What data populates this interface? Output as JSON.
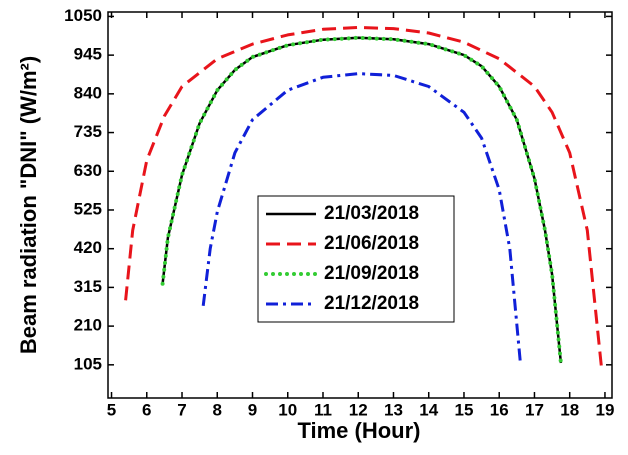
{
  "chart_data": {
    "type": "line",
    "x_label": "Time (Hour)",
    "y_label": "Beam radiation \"DNI\" (W/m²)",
    "xlim": [
      4.9,
      19.2
    ],
    "ylim": [
      15,
      1062
    ],
    "xticks": [
      5,
      6,
      7,
      8,
      9,
      10,
      11,
      12,
      13,
      14,
      15,
      16,
      17,
      18,
      19
    ],
    "yticks": [
      105,
      210,
      315,
      420,
      525,
      630,
      735,
      840,
      945,
      1050
    ],
    "grid": false,
    "legend": "center",
    "series": [
      {
        "name": "21/03/2018",
        "color": "#000000",
        "line_style": "solid",
        "x": [
          6.45,
          6.6,
          7,
          7.5,
          8,
          8.5,
          9,
          10,
          11,
          12,
          13,
          14,
          15,
          15.5,
          16,
          16.5,
          17,
          17.3,
          17.5,
          17.75
        ],
        "values": [
          325,
          450,
          620,
          760,
          850,
          905,
          940,
          972,
          987,
          992,
          988,
          975,
          945,
          915,
          860,
          770,
          610,
          470,
          350,
          110
        ]
      },
      {
        "name": "21/06/2018",
        "color": "#e8141b",
        "line_style": "dashed",
        "x": [
          5.4,
          5.6,
          6,
          6.5,
          7,
          8,
          9,
          10,
          11,
          12,
          13,
          14,
          15,
          16,
          17,
          17.5,
          18,
          18.5,
          18.9
        ],
        "values": [
          280,
          470,
          660,
          780,
          860,
          935,
          975,
          1000,
          1015,
          1020,
          1017,
          1005,
          980,
          935,
          860,
          790,
          680,
          470,
          100
        ]
      },
      {
        "name": "21/09/2018",
        "color": "#33cc33",
        "line_style": "dotted",
        "x": [
          6.45,
          6.6,
          7,
          7.5,
          8,
          8.5,
          9,
          10,
          11,
          12,
          13,
          14,
          15,
          15.5,
          16,
          16.5,
          17,
          17.3,
          17.5,
          17.75
        ],
        "values": [
          325,
          450,
          620,
          760,
          850,
          905,
          940,
          972,
          987,
          992,
          988,
          975,
          945,
          915,
          860,
          770,
          610,
          470,
          350,
          110
        ]
      },
      {
        "name": "21/12/2018",
        "color": "#1020d8",
        "line_style": "dashdot",
        "x": [
          7.6,
          7.8,
          8,
          8.5,
          9,
          10,
          11,
          12,
          13,
          14,
          15,
          15.5,
          16,
          16.3,
          16.6
        ],
        "values": [
          265,
          420,
          520,
          680,
          770,
          850,
          885,
          895,
          890,
          860,
          790,
          720,
          580,
          420,
          110
        ]
      }
    ]
  }
}
